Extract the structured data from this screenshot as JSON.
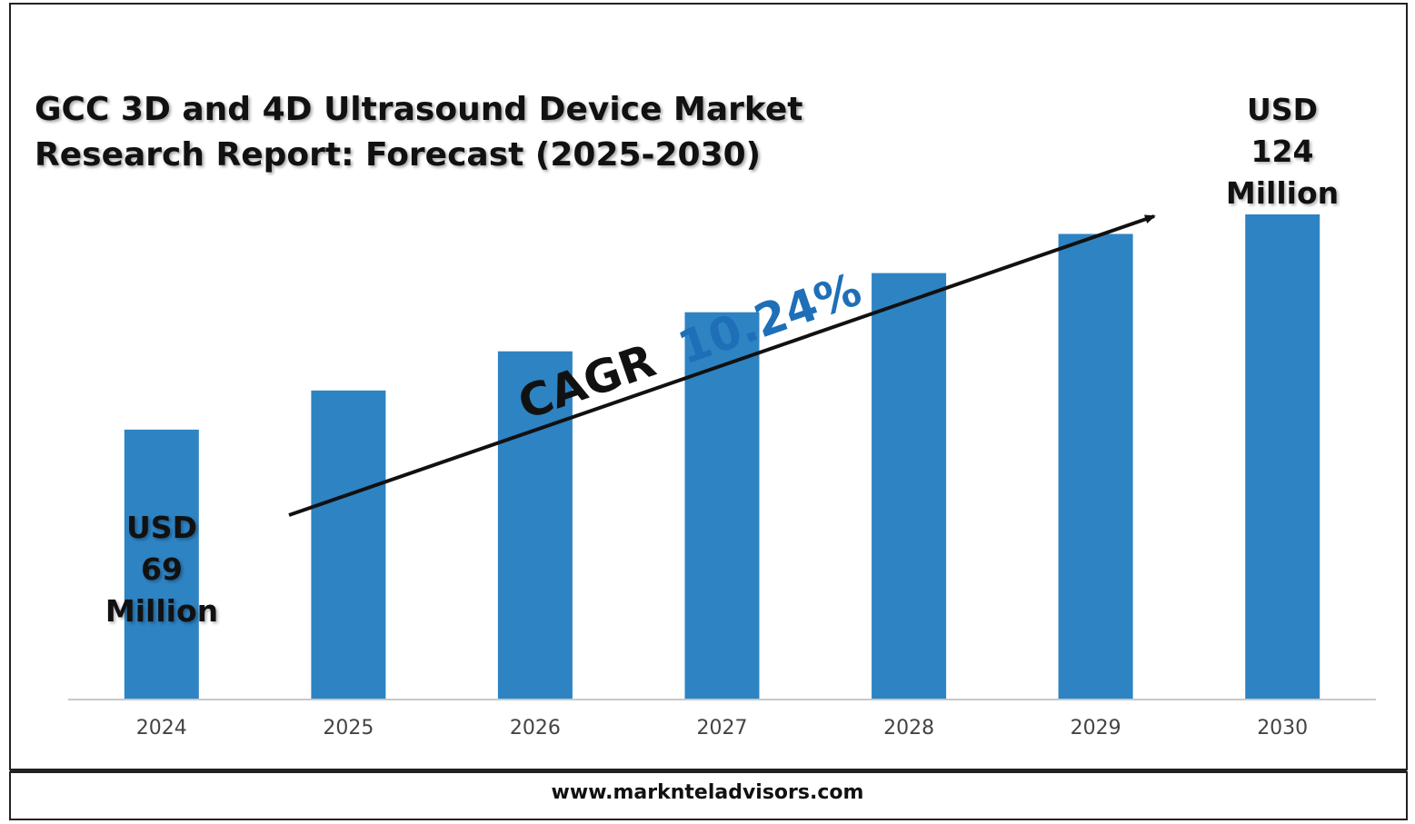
{
  "chart_data": {
    "type": "bar",
    "title": "GCC 3D and 4D Ultrasound Device Market Research Report: Forecast (2025-2030)",
    "categories": [
      "2024",
      "2025",
      "2026",
      "2027",
      "2028",
      "2029",
      "2030"
    ],
    "values": [
      69,
      79,
      89,
      99,
      109,
      119,
      124
    ],
    "ylim": [
      0,
      124
    ],
    "grid": false,
    "bar_color": "#2E83C3",
    "annotations": {
      "start": [
        "USD",
        "69",
        "Million"
      ],
      "end": [
        "USD",
        "124",
        "Million"
      ],
      "cagr_label": "CAGR",
      "cagr_value": "10.24%",
      "cagr_color": "#1F6FB8"
    }
  },
  "footer": {
    "website": "www.marknteladvisors.com"
  }
}
